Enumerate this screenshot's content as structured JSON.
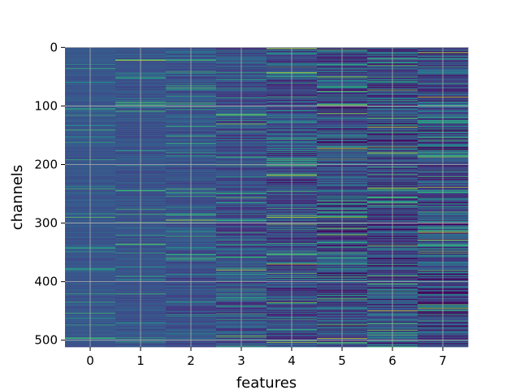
{
  "chart_data": {
    "type": "heatmap",
    "title": "",
    "xlabel": "features",
    "ylabel": "channels",
    "x_tick_labels": [
      "0",
      "1",
      "2",
      "3",
      "4",
      "5",
      "6",
      "7"
    ],
    "y_tick_labels": [
      "0",
      "100",
      "200",
      "300",
      "400",
      "500"
    ],
    "x_ticks": [
      0,
      1,
      2,
      3,
      4,
      5,
      6,
      7
    ],
    "y_ticks": [
      0,
      100,
      200,
      300,
      400,
      500
    ],
    "xlim": [
      -0.5,
      7.5
    ],
    "ylim": [
      511.5,
      -0.5
    ],
    "y_axis_inverted": true,
    "n_features": 8,
    "n_channels": 512,
    "colormap": "viridis",
    "grid": true,
    "grid_color": "#b0b0b0",
    "column_base_colors": [
      "#3f5a8c",
      "#3d5a8c",
      "#3a548b",
      "#34508a",
      "#3a4f8a",
      "#33418a",
      "#35498b",
      "#3f468a"
    ],
    "column_variation": [
      0.06,
      0.08,
      0.12,
      0.18,
      0.22,
      0.28,
      0.28,
      0.26
    ],
    "bright_lines": [
      {
        "feature": 4,
        "channel": 2
      },
      {
        "feature": 4,
        "channel": 43
      },
      {
        "feature": 4,
        "channel": 218
      },
      {
        "feature": 4,
        "channel": 290
      },
      {
        "feature": 4,
        "channel": 370
      },
      {
        "feature": 5,
        "channel": 172
      },
      {
        "feature": 5,
        "channel": 300
      },
      {
        "feature": 5,
        "channel": 497
      },
      {
        "feature": 6,
        "channel": 136
      },
      {
        "feature": 6,
        "channel": 180
      },
      {
        "feature": 6,
        "channel": 450
      },
      {
        "feature": 7,
        "channel": 9
      },
      {
        "feature": 7,
        "channel": 85
      },
      {
        "feature": 7,
        "channel": 300
      },
      {
        "feature": 7,
        "channel": 316
      },
      {
        "feature": 2,
        "channel": 295
      },
      {
        "feature": 1,
        "channel": 22
      },
      {
        "feature": 3,
        "channel": 380
      }
    ]
  }
}
